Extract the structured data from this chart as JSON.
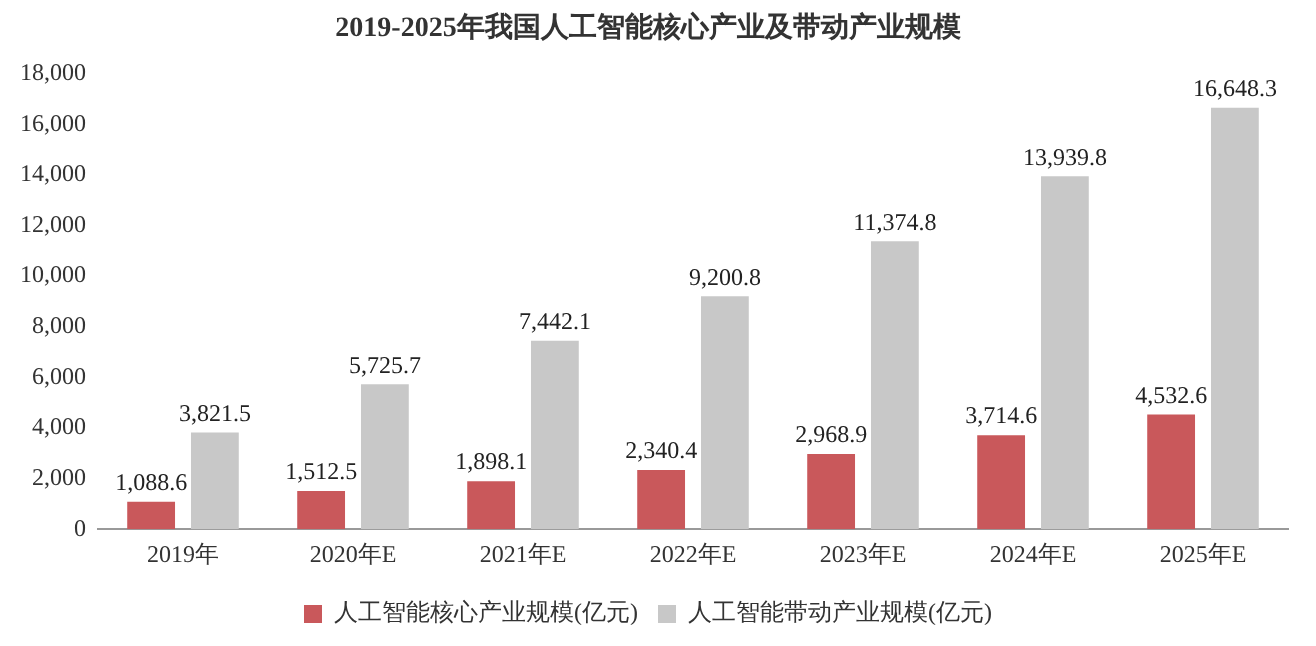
{
  "chart_data": {
    "type": "bar",
    "title": "2019-2025年我国人工智能核心产业及带动产业规模",
    "categories": [
      "2019年",
      "2020年E",
      "2021年E",
      "2022年E",
      "2023年E",
      "2024年E",
      "2025年E"
    ],
    "series": [
      {
        "name": "人工智能核心产业规模(亿元)",
        "color": "#c9585b",
        "values": [
          1088.6,
          1512.5,
          1898.1,
          2340.4,
          2968.9,
          3714.6,
          4532.6
        ],
        "value_labels": [
          "1,088.6",
          "1,512.5",
          "1,898.1",
          "2,340.4",
          "2,968.9",
          "3,714.6",
          "4,532.6"
        ]
      },
      {
        "name": "人工智能带动产业规模(亿元)",
        "color": "#c8c8c8",
        "values": [
          3821.5,
          5725.7,
          7442.1,
          9200.8,
          11374.8,
          13939.8,
          16648.3
        ],
        "value_labels": [
          "3,821.5",
          "5,725.7",
          "7,442.1",
          "9,200.8",
          "11,374.8",
          "13,939.8",
          "16,648.3"
        ]
      }
    ],
    "ylim": [
      0,
      18000
    ],
    "yticks": [
      0,
      {
        "value": 2000,
        "label": "2,000"
      },
      {
        "value": 4000,
        "label": "4,000"
      },
      {
        "value": 6000,
        "label": "6,000"
      },
      {
        "value": 8000,
        "label": "8,000"
      },
      {
        "value": 10000,
        "label": "10,000"
      },
      {
        "value": 12000,
        "label": "12,000"
      },
      {
        "value": 14000,
        "label": "14,000"
      },
      {
        "value": 16000,
        "label": "16,000"
      },
      {
        "value": 18000,
        "label": "18,000"
      }
    ],
    "grid": false,
    "legend": "bottom"
  }
}
